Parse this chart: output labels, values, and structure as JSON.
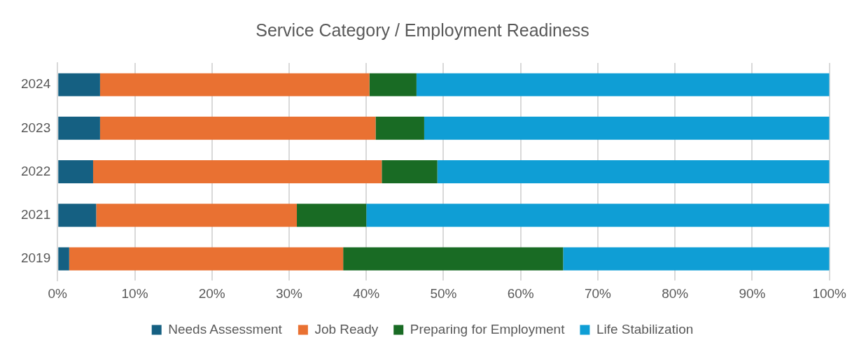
{
  "chart_data": {
    "type": "bar",
    "orientation": "horizontal",
    "stacked": true,
    "title": "Service Category / Employment Readiness",
    "categories": [
      "2024",
      "2023",
      "2022",
      "2021",
      "2019"
    ],
    "series": [
      {
        "name": "Needs Assessment",
        "color": "#156082",
        "values": [
          5.5,
          5.5,
          4.6,
          5.0,
          1.5
        ]
      },
      {
        "name": "Job Ready",
        "color": "#e97132",
        "values": [
          34.9,
          35.7,
          37.4,
          26.0,
          35.5
        ]
      },
      {
        "name": "Preparing for Employment",
        "color": "#196b24",
        "values": [
          6.1,
          6.3,
          7.2,
          9.0,
          28.5
        ]
      },
      {
        "name": "Life Stabilization",
        "color": "#0f9ed5",
        "values": [
          53.5,
          52.5,
          50.8,
          60.0,
          34.5
        ]
      }
    ],
    "xlim": [
      0,
      100
    ],
    "xticks": [
      {
        "value": 0,
        "label": "0%"
      },
      {
        "value": 10,
        "label": "10%"
      },
      {
        "value": 20,
        "label": "20%"
      },
      {
        "value": 30,
        "label": "30%"
      },
      {
        "value": 40,
        "label": "40%"
      },
      {
        "value": 50,
        "label": "50%"
      },
      {
        "value": 60,
        "label": "60%"
      },
      {
        "value": 70,
        "label": "70%"
      },
      {
        "value": 80,
        "label": "80%"
      },
      {
        "value": 90,
        "label": "90%"
      },
      {
        "value": 100,
        "label": "100%"
      }
    ],
    "grid": "x",
    "legend": "bottom"
  }
}
